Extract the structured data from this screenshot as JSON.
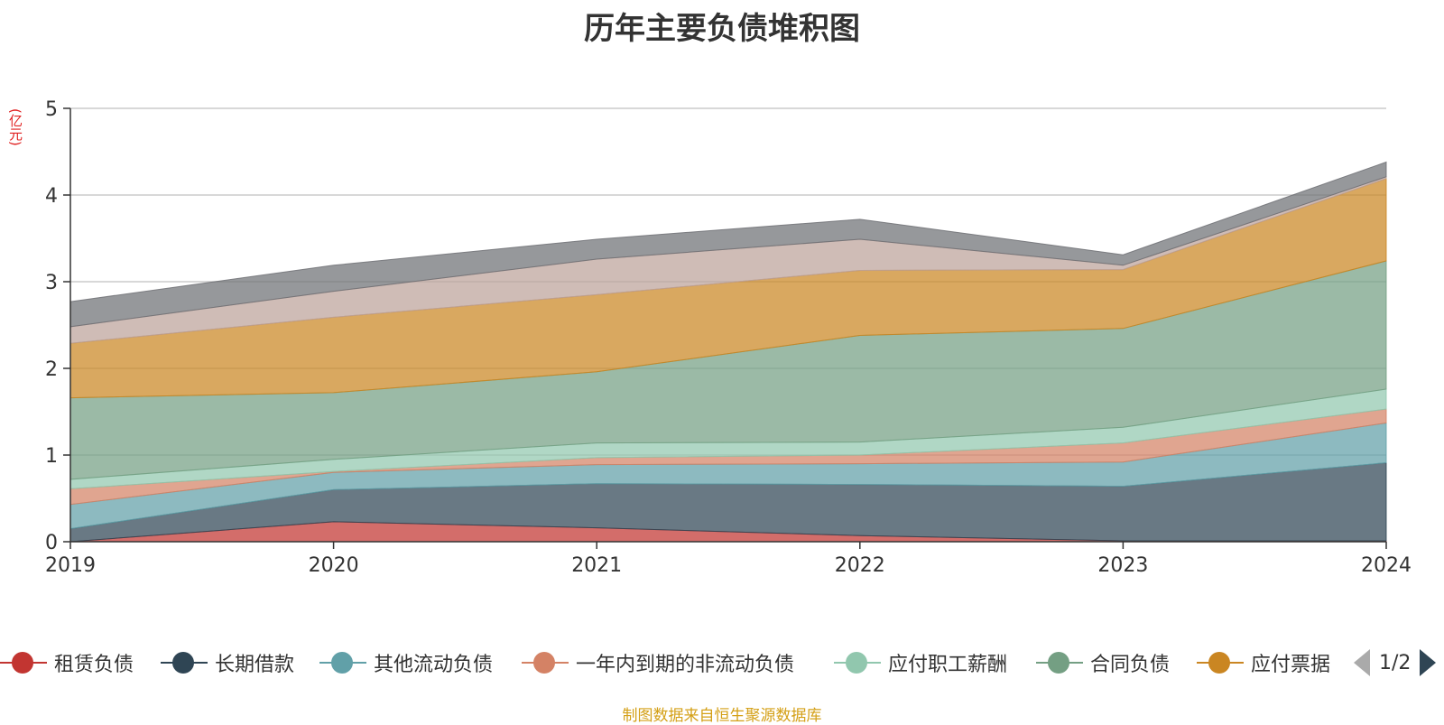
{
  "chart_data": {
    "type": "area",
    "stacked": true,
    "title": "历年主要负债堆积图",
    "ylabel": "(亿元)",
    "xlabel": "",
    "x": [
      "2019",
      "2020",
      "2021",
      "2022",
      "2023",
      "2024"
    ],
    "ylim": [
      0,
      5
    ],
    "yticks": [
      "0",
      "1",
      "2",
      "3",
      "4",
      "5"
    ],
    "grid": true,
    "legend_position": "bottom",
    "series": [
      {
        "name": "租赁负债",
        "color": "#c23531",
        "values": [
          0.0,
          0.23,
          0.16,
          0.07,
          0.01,
          0.01
        ]
      },
      {
        "name": "长期借款",
        "color": "#2f4554",
        "values": [
          0.15,
          0.37,
          0.51,
          0.59,
          0.63,
          0.9
        ]
      },
      {
        "name": "其他流动负债",
        "color": "#61a0a8",
        "values": [
          0.28,
          0.2,
          0.22,
          0.24,
          0.28,
          0.46
        ]
      },
      {
        "name": "一年内到期的非流动负债",
        "color": "#d48265",
        "values": [
          0.18,
          0.01,
          0.08,
          0.1,
          0.22,
          0.16
        ]
      },
      {
        "name": "应付职工薪酬",
        "color": "#91c7ae",
        "values": [
          0.11,
          0.14,
          0.17,
          0.15,
          0.18,
          0.23
        ]
      },
      {
        "name": "合同负债",
        "color": "#749f83",
        "values": [
          0.94,
          0.77,
          0.82,
          1.23,
          1.14,
          1.48
        ]
      },
      {
        "name": "应付票据",
        "color": "#ca8622",
        "values": [
          0.63,
          0.87,
          0.89,
          0.75,
          0.68,
          0.95
        ]
      },
      {
        "name": "",
        "color": "#bda29a",
        "values": [
          0.19,
          0.3,
          0.41,
          0.36,
          0.05,
          0.02
        ]
      },
      {
        "name": "",
        "color": "#6e7074",
        "values": [
          0.29,
          0.3,
          0.23,
          0.23,
          0.12,
          0.17
        ]
      }
    ]
  },
  "legend": {
    "visible_count": 7,
    "page_indicator": "1/2"
  },
  "source_note": "制图数据来自恒生聚源数据库"
}
